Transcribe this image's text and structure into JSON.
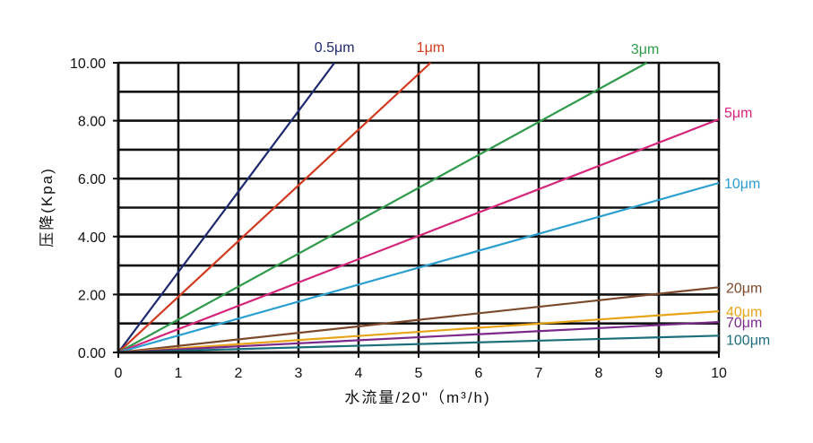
{
  "chart_data": {
    "type": "line",
    "title": "",
    "xlabel": "水流量/20\"（m³/h)",
    "ylabel": "压降(Kpa)",
    "xlim": [
      0,
      10
    ],
    "ylim": [
      0,
      10
    ],
    "grid": true,
    "x_ticks": [
      "0",
      "1",
      "2",
      "3",
      "4",
      "5",
      "6",
      "7",
      "8",
      "9",
      "10"
    ],
    "y_ticks": [
      "0.00",
      "2.00",
      "4.00",
      "6.00",
      "8.00",
      "10.00"
    ],
    "series": [
      {
        "name": "0.5μm",
        "color": "#1f2a6e",
        "x": [
          0,
          3.6
        ],
        "y": [
          0,
          10
        ]
      },
      {
        "name": "1μm",
        "color": "#d13a1e",
        "x": [
          0,
          5.2
        ],
        "y": [
          0,
          10
        ]
      },
      {
        "name": "3μm",
        "color": "#2e9a4a",
        "x": [
          0,
          8.8
        ],
        "y": [
          0,
          10
        ]
      },
      {
        "name": "5μm",
        "color": "#d4267a",
        "x": [
          0,
          10
        ],
        "y": [
          0,
          8.05
        ]
      },
      {
        "name": "10μm",
        "color": "#2b9fd0",
        "x": [
          0,
          10
        ],
        "y": [
          0,
          5.85
        ]
      },
      {
        "name": "20μm",
        "color": "#7b4a2a",
        "x": [
          0,
          10
        ],
        "y": [
          0,
          2.25
        ]
      },
      {
        "name": "40μm",
        "color": "#e8a419",
        "x": [
          0,
          10
        ],
        "y": [
          0,
          1.42
        ]
      },
      {
        "name": "70μm",
        "color": "#7b2a8a",
        "x": [
          0,
          10
        ],
        "y": [
          0,
          1.05
        ]
      },
      {
        "name": "100μm",
        "color": "#1b6f7a",
        "x": [
          0,
          10
        ],
        "y": [
          0,
          0.58
        ]
      }
    ]
  }
}
